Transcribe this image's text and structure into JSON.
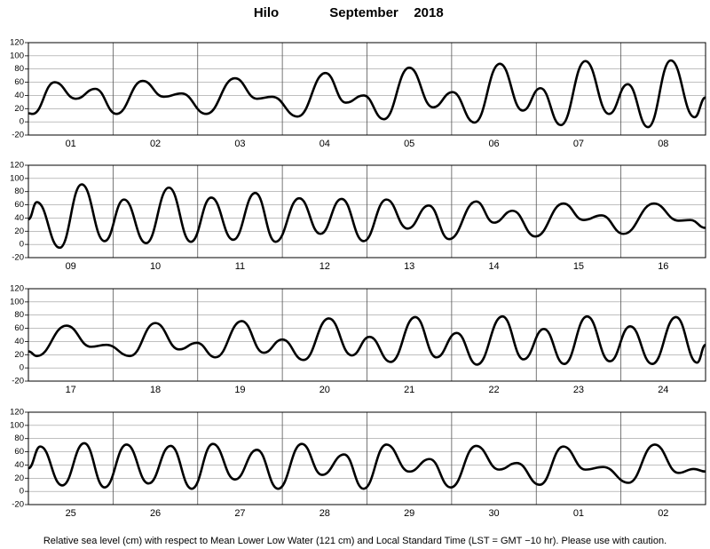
{
  "title": {
    "station": "Hilo",
    "month": "September",
    "year": "2018"
  },
  "footnote": "Relative sea level (cm) with respect to Mean Lower Low Water (121 cm) and Local Standard Time (LST = GMT −10 hr). Please use with caution.",
  "chart_data": [
    {
      "type": "line",
      "color": "#000000",
      "grid": true,
      "categories": [
        "01",
        "02",
        "03",
        "04",
        "05",
        "06",
        "07",
        "08"
      ],
      "xlim": [
        0,
        8
      ],
      "ylim": [
        -20,
        120
      ],
      "yticks": [
        -20,
        0,
        20,
        40,
        60,
        80,
        100,
        120
      ],
      "x": [
        0,
        0.05,
        0.31,
        0.56,
        0.79,
        1.04,
        1.35,
        1.6,
        1.81,
        2.1,
        2.44,
        2.7,
        2.88,
        3.18,
        3.51,
        3.75,
        3.96,
        4.2,
        4.5,
        4.78,
        5.01,
        5.27,
        5.57,
        5.84,
        6.05,
        6.29,
        6.58,
        6.86,
        7.08,
        7.32,
        7.59,
        7.87,
        8
      ],
      "values": [
        13,
        12,
        60,
        35,
        50,
        12,
        62,
        38,
        43,
        12,
        66,
        35,
        38,
        8,
        74,
        29,
        40,
        4,
        82,
        22,
        45,
        -1,
        88,
        17,
        51,
        -5,
        92,
        12,
        57,
        -8,
        93,
        7,
        37
      ]
    },
    {
      "type": "line",
      "color": "#000000",
      "grid": true,
      "categories": [
        "09",
        "10",
        "11",
        "12",
        "13",
        "14",
        "15",
        "16"
      ],
      "xlim": [
        0,
        8
      ],
      "ylim": [
        -20,
        120
      ],
      "yticks": [
        -20,
        0,
        20,
        40,
        60,
        80,
        100,
        120
      ],
      "x": [
        0,
        0.1,
        0.37,
        0.63,
        0.9,
        1.13,
        1.39,
        1.66,
        1.92,
        2.16,
        2.42,
        2.68,
        2.92,
        3.2,
        3.45,
        3.7,
        3.96,
        4.23,
        4.48,
        4.73,
        4.97,
        5.29,
        5.5,
        5.72,
        5.99,
        6.32,
        6.56,
        6.77,
        7.03,
        7.39,
        7.68,
        7.82,
        8
      ],
      "values": [
        38,
        64,
        -5,
        91,
        5,
        68,
        2,
        86,
        4,
        71,
        7,
        78,
        4,
        70,
        16,
        69,
        5,
        68,
        24,
        59,
        8,
        65,
        33,
        51,
        12,
        62,
        37,
        44,
        16,
        62,
        36,
        37,
        25
      ]
    },
    {
      "type": "line",
      "color": "#000000",
      "grid": true,
      "categories": [
        "17",
        "18",
        "19",
        "20",
        "21",
        "22",
        "23",
        "24"
      ],
      "xlim": [
        0,
        8
      ],
      "ylim": [
        -20,
        120
      ],
      "yticks": [
        -20,
        0,
        20,
        40,
        60,
        80,
        100,
        120
      ],
      "x": [
        0,
        0.1,
        0.45,
        0.74,
        0.92,
        1.2,
        1.5,
        1.78,
        1.99,
        2.21,
        2.52,
        2.78,
        3.0,
        3.25,
        3.55,
        3.82,
        4.03,
        4.28,
        4.57,
        4.82,
        5.06,
        5.3,
        5.6,
        5.85,
        6.09,
        6.33,
        6.6,
        6.87,
        7.11,
        7.37,
        7.65,
        7.9,
        8
      ],
      "values": [
        25,
        18,
        64,
        32,
        35,
        18,
        68,
        28,
        38,
        16,
        71,
        23,
        43,
        12,
        75,
        19,
        47,
        9,
        77,
        16,
        53,
        5,
        78,
        13,
        59,
        6,
        78,
        10,
        63,
        6,
        77,
        8,
        35
      ]
    },
    {
      "type": "line",
      "color": "#000000",
      "grid": true,
      "categories": [
        "25",
        "26",
        "27",
        "28",
        "29",
        "30",
        "01",
        "02"
      ],
      "xlim": [
        0,
        8
      ],
      "ylim": [
        -20,
        120
      ],
      "yticks": [
        -20,
        0,
        20,
        40,
        60,
        80,
        100,
        120
      ],
      "x": [
        0,
        0.14,
        0.4,
        0.66,
        0.9,
        1.16,
        1.42,
        1.68,
        1.93,
        2.18,
        2.44,
        2.7,
        2.95,
        3.23,
        3.47,
        3.73,
        3.96,
        4.23,
        4.5,
        4.74,
        4.99,
        5.29,
        5.56,
        5.77,
        6.04,
        6.32,
        6.58,
        6.79,
        7.09,
        7.4,
        7.68,
        7.86,
        8
      ],
      "values": [
        35,
        68,
        9,
        73,
        6,
        71,
        12,
        69,
        4,
        72,
        18,
        63,
        4,
        72,
        25,
        56,
        4,
        71,
        30,
        49,
        6,
        69,
        33,
        43,
        10,
        68,
        33,
        37,
        13,
        71,
        28,
        34,
        30
      ]
    }
  ]
}
